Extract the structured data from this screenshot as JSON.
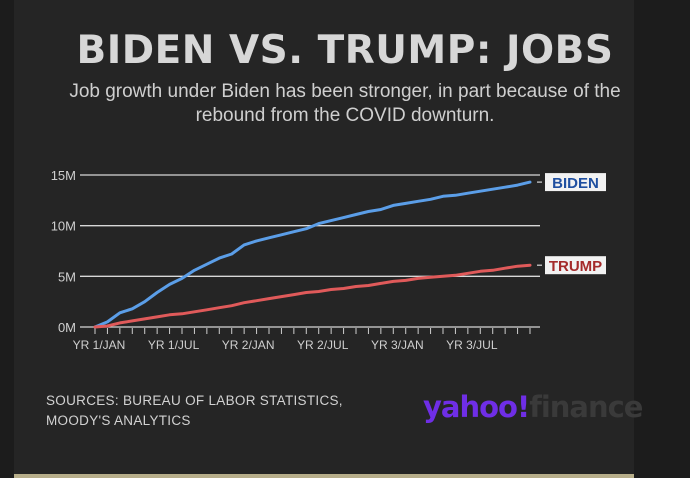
{
  "header": {
    "title": "BIDEN VS. TRUMP: JOBS",
    "subtitle": "Job growth under Biden has been stronger, in part because of the rebound from the COVID downturn."
  },
  "footer": {
    "sources_line1": "SOURCES: BUREAU OF LABOR STATISTICS,",
    "sources_line2": "MOODY'S ANALYTICS",
    "logo_part1": "yahoo!",
    "logo_part2": "finance"
  },
  "colors": {
    "biden": "#5b9ee8",
    "trump": "#e05a5a",
    "logo": "#6f2ee6",
    "accent_bar": "#b7ae8a"
  },
  "chart_data": {
    "type": "line",
    "title": "BIDEN VS. TRUMP: JOBS",
    "x_tick_labels": [
      "YR 1/JAN",
      "YR 1/JUL",
      "YR 2/JAN",
      "YR 2/JUL",
      "YR 3/JAN",
      "YR 3/JUL"
    ],
    "x_label_months": [
      0,
      6,
      12,
      18,
      24,
      30
    ],
    "y_tick_labels": [
      "0M",
      "5M",
      "10M",
      "15M"
    ],
    "y_ticks": [
      0,
      5,
      10,
      15
    ],
    "ylim": [
      0,
      15
    ],
    "xlim": [
      0,
      35
    ],
    "grid": true,
    "series": [
      {
        "name": "BIDEN",
        "x": [
          0,
          1,
          2,
          3,
          4,
          5,
          6,
          7,
          8,
          9,
          10,
          11,
          12,
          13,
          14,
          15,
          16,
          17,
          18,
          19,
          20,
          21,
          22,
          23,
          24,
          25,
          26,
          27,
          28,
          29,
          30,
          31,
          32,
          33,
          34,
          35
        ],
        "values": [
          0,
          0.5,
          1.4,
          1.8,
          2.5,
          3.4,
          4.2,
          4.8,
          5.6,
          6.2,
          6.8,
          7.2,
          8.1,
          8.5,
          8.8,
          9.1,
          9.4,
          9.7,
          10.2,
          10.5,
          10.8,
          11.1,
          11.4,
          11.6,
          12.0,
          12.2,
          12.4,
          12.6,
          12.9,
          13.0,
          13.2,
          13.4,
          13.6,
          13.8,
          14.0,
          14.3
        ]
      },
      {
        "name": "TRUMP",
        "x": [
          0,
          1,
          2,
          3,
          4,
          5,
          6,
          7,
          8,
          9,
          10,
          11,
          12,
          13,
          14,
          15,
          16,
          17,
          18,
          19,
          20,
          21,
          22,
          23,
          24,
          25,
          26,
          27,
          28,
          29,
          30,
          31,
          32,
          33,
          34,
          35
        ],
        "values": [
          0,
          0.1,
          0.4,
          0.6,
          0.8,
          1.0,
          1.2,
          1.3,
          1.5,
          1.7,
          1.9,
          2.1,
          2.4,
          2.6,
          2.8,
          3.0,
          3.2,
          3.4,
          3.5,
          3.7,
          3.8,
          4.0,
          4.1,
          4.3,
          4.5,
          4.6,
          4.8,
          4.9,
          5.0,
          5.1,
          5.3,
          5.5,
          5.6,
          5.8,
          6.0,
          6.1
        ]
      }
    ]
  }
}
